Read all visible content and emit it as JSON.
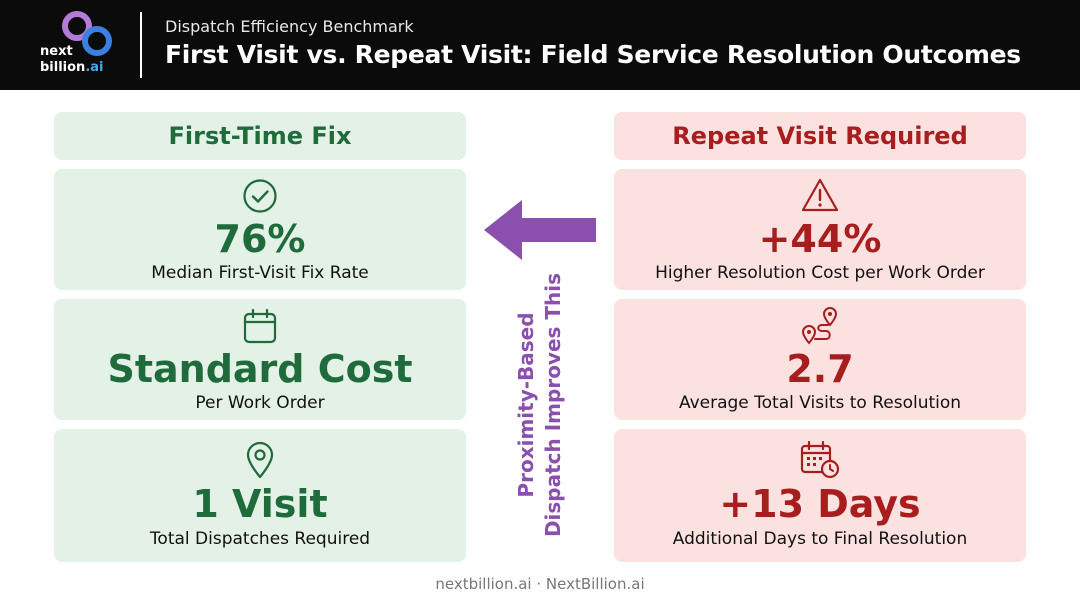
{
  "header": {
    "logo_line1": "next",
    "logo_line2": "billion",
    "logo_suffix": ".ai",
    "kicker": "Dispatch Efficiency Benchmark",
    "title": "First Visit vs. Repeat Visit: Field Service Resolution Outcomes"
  },
  "left": {
    "heading": "First-Time Fix",
    "cards": [
      {
        "icon": "check-circle-icon",
        "value": "76%",
        "label": "Median First-Visit Fix Rate"
      },
      {
        "icon": "calendar-icon",
        "value": "Standard Cost",
        "label": "Per Work Order"
      },
      {
        "icon": "map-pin-icon",
        "value": "1 Visit",
        "label": "Total Dispatches Required"
      }
    ]
  },
  "right": {
    "heading": "Repeat Visit Required",
    "cards": [
      {
        "icon": "warning-icon",
        "value": "+44%",
        "label": "Higher Resolution Cost per Work Order"
      },
      {
        "icon": "route-icon",
        "value": "2.7",
        "label": "Average Total Visits to Resolution"
      },
      {
        "icon": "calendar-clock-icon",
        "value": "+13 Days",
        "label": "Additional Days to Final Resolution"
      }
    ]
  },
  "center": {
    "line1": "Proximity-Based",
    "line2": "Dispatch Improves This"
  },
  "footer": "nextbillion.ai · NextBillion.ai",
  "colors": {
    "green_bg": "#e3f1e6",
    "green_text": "#1f6b3b",
    "red_bg": "#fbe2e1",
    "red_text": "#a81d1d",
    "purple": "#8b4fae"
  }
}
